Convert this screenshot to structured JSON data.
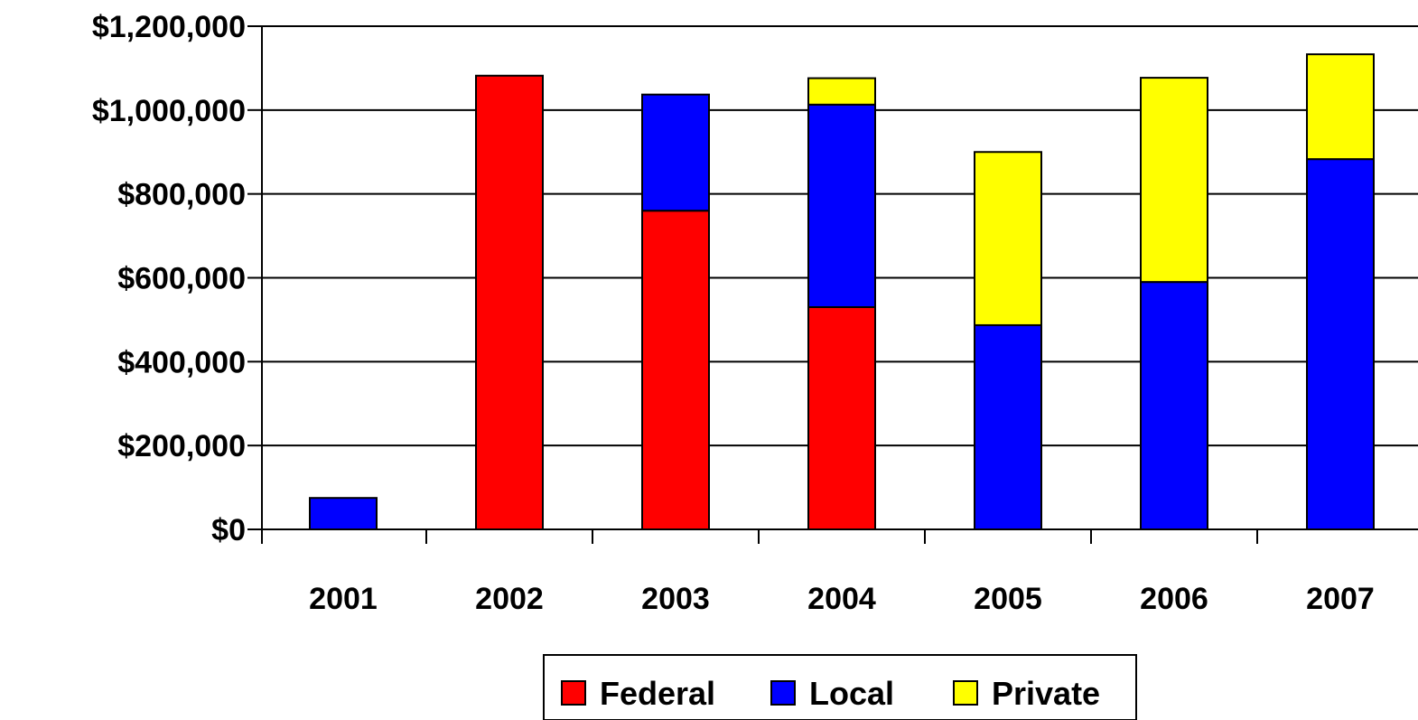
{
  "chart_data": {
    "type": "bar",
    "stacked": true,
    "categories": [
      "2001",
      "2002",
      "2003",
      "2004",
      "2005",
      "2006",
      "2007"
    ],
    "series": [
      {
        "name": "Federal",
        "color": "#ff0000",
        "values": [
          0,
          1082000,
          760000,
          530000,
          0,
          0,
          0
        ]
      },
      {
        "name": "Local",
        "color": "#0000ff",
        "values": [
          75000,
          0,
          277000,
          483000,
          487000,
          590000,
          883000
        ]
      },
      {
        "name": "Private",
        "color": "#ffff00",
        "values": [
          0,
          0,
          0,
          63000,
          413000,
          487000,
          250000
        ]
      }
    ],
    "y_ticks": [
      "$0",
      "$200,000",
      "$400,000",
      "$600,000",
      "$800,000",
      "$1,000,000",
      "$1,200,000"
    ],
    "y_tick_values": [
      0,
      200000,
      400000,
      600000,
      800000,
      1000000,
      1200000
    ],
    "ylim": [
      0,
      1200000
    ],
    "grid": true,
    "legend_position": "bottom"
  }
}
